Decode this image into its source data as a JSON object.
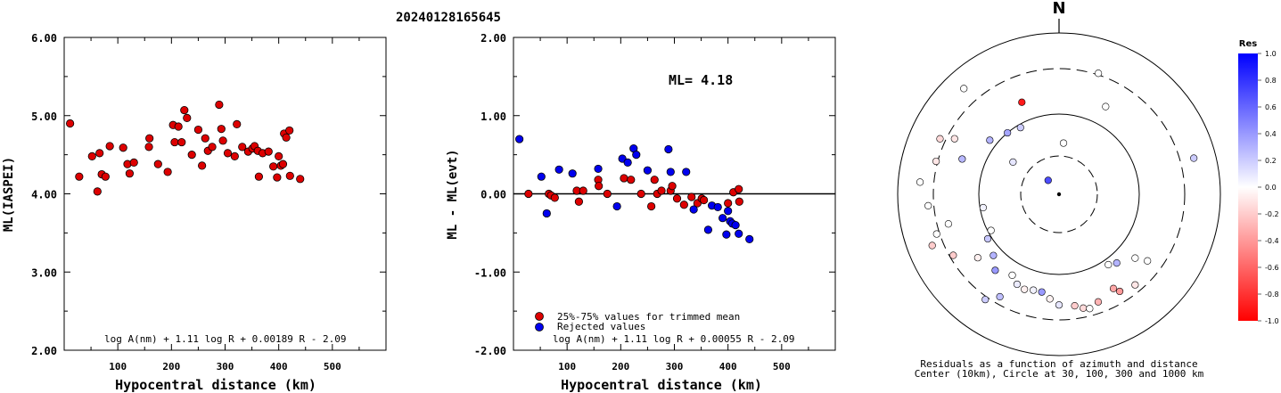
{
  "title": "20240128165645",
  "colors": {
    "red": "#dd0000",
    "blue": "#0000ee",
    "stroke": "#000000"
  },
  "chart_data": [
    {
      "type": "scatter",
      "xlabel": "Hypocentral distance (km)",
      "ylabel": "ML(IASPEI)",
      "xlim": [
        0,
        600
      ],
      "ylim": [
        2.0,
        6.0
      ],
      "xticks": [
        "100",
        "200",
        "300",
        "400",
        "500"
      ],
      "yticks": [
        "2.00",
        "3.00",
        "4.00",
        "5.00",
        "6.00"
      ],
      "formula": "log A(nm) + 1.11 log R + 0.00189 R - 2.09",
      "series": [
        {
          "color": "red",
          "points": [
            [
              11,
              4.9
            ],
            [
              28,
              4.22
            ],
            [
              52,
              4.48
            ],
            [
              62,
              4.03
            ],
            [
              66,
              4.52
            ],
            [
              70,
              4.25
            ],
            [
              77,
              4.22
            ],
            [
              85,
              4.61
            ],
            [
              110,
              4.59
            ],
            [
              118,
              4.38
            ],
            [
              122,
              4.26
            ],
            [
              130,
              4.4
            ],
            [
              158,
              4.6
            ],
            [
              159,
              4.71
            ],
            [
              175,
              4.38
            ],
            [
              193,
              4.28
            ],
            [
              203,
              4.88
            ],
            [
              206,
              4.66
            ],
            [
              213,
              4.86
            ],
            [
              219,
              4.66
            ],
            [
              224,
              5.07
            ],
            [
              229,
              4.97
            ],
            [
              238,
              4.5
            ],
            [
              250,
              4.82
            ],
            [
              257,
              4.36
            ],
            [
              263,
              4.71
            ],
            [
              268,
              4.55
            ],
            [
              276,
              4.6
            ],
            [
              289,
              5.14
            ],
            [
              293,
              4.83
            ],
            [
              296,
              4.68
            ],
            [
              305,
              4.52
            ],
            [
              318,
              4.48
            ],
            [
              322,
              4.89
            ],
            [
              332,
              4.6
            ],
            [
              343,
              4.54
            ],
            [
              351,
              4.58
            ],
            [
              355,
              4.61
            ],
            [
              361,
              4.55
            ],
            [
              363,
              4.22
            ],
            [
              370,
              4.52
            ],
            [
              381,
              4.54
            ],
            [
              390,
              4.35
            ],
            [
              397,
              4.21
            ],
            [
              400,
              4.48
            ],
            [
              404,
              4.36
            ],
            [
              408,
              4.38
            ],
            [
              410,
              4.77
            ],
            [
              414,
              4.72
            ],
            [
              420,
              4.81
            ],
            [
              421,
              4.23
            ],
            [
              440,
              4.19
            ]
          ]
        }
      ]
    },
    {
      "type": "scatter",
      "xlabel": "Hypocentral distance (km)",
      "ylabel": "ML - ML(evt)",
      "xlim": [
        0,
        600
      ],
      "ylim": [
        -2.0,
        2.0
      ],
      "xticks": [
        "100",
        "200",
        "300",
        "400",
        "500"
      ],
      "yticks": [
        "-2.00",
        "-1.00",
        "0.00",
        "1.00",
        "2.00"
      ],
      "annotation": "ML= 4.18",
      "legend": [
        {
          "label": "25%-75% values for trimmed mean",
          "color": "red"
        },
        {
          "label": "Rejected values",
          "color": "blue"
        }
      ],
      "formula": "log A(nm) + 1.11 log R + 0.00055 R - 2.09",
      "series": [
        {
          "name": "25%-75% values for trimmed mean",
          "color": "red",
          "points": [
            [
              28,
              0.0
            ],
            [
              66,
              0.0
            ],
            [
              70,
              -0.02
            ],
            [
              77,
              -0.05
            ],
            [
              118,
              0.04
            ],
            [
              122,
              -0.1
            ],
            [
              130,
              0.04
            ],
            [
              158,
              0.18
            ],
            [
              159,
              0.1
            ],
            [
              175,
              0.0
            ],
            [
              206,
              0.2
            ],
            [
              219,
              0.18
            ],
            [
              238,
              0.0
            ],
            [
              257,
              -0.16
            ],
            [
              263,
              0.18
            ],
            [
              268,
              0.0
            ],
            [
              276,
              0.04
            ],
            [
              293,
              0.04
            ],
            [
              296,
              0.1
            ],
            [
              305,
              -0.06
            ],
            [
              318,
              -0.14
            ],
            [
              332,
              -0.04
            ],
            [
              343,
              -0.12
            ],
            [
              351,
              -0.06
            ],
            [
              355,
              -0.08
            ],
            [
              400,
              -0.12
            ],
            [
              410,
              0.02
            ],
            [
              420,
              0.06
            ],
            [
              421,
              -0.1
            ]
          ]
        },
        {
          "name": "Rejected values",
          "color": "blue",
          "points": [
            [
              11,
              0.7
            ],
            [
              52,
              0.22
            ],
            [
              62,
              -0.25
            ],
            [
              85,
              0.31
            ],
            [
              110,
              0.26
            ],
            [
              158,
              0.32
            ],
            [
              193,
              -0.16
            ],
            [
              203,
              0.45
            ],
            [
              213,
              0.4
            ],
            [
              224,
              0.58
            ],
            [
              229,
              0.5
            ],
            [
              250,
              0.3
            ],
            [
              289,
              0.57
            ],
            [
              293,
              0.28
            ],
            [
              322,
              0.28
            ],
            [
              336,
              -0.2
            ],
            [
              363,
              -0.46
            ],
            [
              370,
              -0.15
            ],
            [
              381,
              -0.17
            ],
            [
              390,
              -0.31
            ],
            [
              397,
              -0.52
            ],
            [
              400,
              -0.22
            ],
            [
              404,
              -0.35
            ],
            [
              408,
              -0.38
            ],
            [
              414,
              -0.4
            ],
            [
              420,
              -0.51
            ],
            [
              440,
              -0.58
            ]
          ]
        }
      ]
    },
    {
      "type": "polar-scatter",
      "north_label": "N",
      "caption": [
        "Residuals as a function of azimuth and distance",
        "Center (10km), Circle at 30, 100, 300 and 1000 km"
      ],
      "colorbar": {
        "title": "Res",
        "range": [
          -1.0,
          1.0
        ],
        "ticks": [
          "1.0",
          "0.8",
          "0.6",
          "0.4",
          "0.2",
          "0.0",
          "-0.2",
          "-0.4",
          "-0.6",
          "-0.8",
          "-1.0"
        ]
      },
      "stations": [
        {
          "az": -38,
          "dist": 11,
          "res": 0.7
        },
        {
          "az": 5,
          "dist": 32,
          "res": 0.0
        },
        {
          "az": -55,
          "dist": 35,
          "res": 0.1
        },
        {
          "az": -30,
          "dist": 48,
          "res": 0.2
        },
        {
          "az": -40,
          "dist": 50,
          "res": 0.35
        },
        {
          "az": -52,
          "dist": 54,
          "res": 0.3
        },
        {
          "az": -70,
          "dist": 62,
          "res": 0.28
        },
        {
          "az": -62,
          "dist": 70,
          "res": -0.1
        },
        {
          "az": -100,
          "dist": 48,
          "res": 0.05
        },
        {
          "az": -118,
          "dist": 48,
          "res": 0.0
        },
        {
          "az": -122,
          "dist": 52,
          "res": 0.22
        },
        {
          "az": -133,
          "dist": 55,
          "res": 0.3
        },
        {
          "az": -140,
          "dist": 60,
          "res": 0.4
        },
        {
          "az": -150,
          "dist": 57,
          "res": 0.0
        },
        {
          "az": -155,
          "dist": 60,
          "res": 0.08
        },
        {
          "az": -160,
          "dist": 61,
          "res": -0.06
        },
        {
          "az": -165,
          "dist": 60,
          "res": 0.05
        },
        {
          "az": -170,
          "dist": 60,
          "res": 0.4
        },
        {
          "az": -175,
          "dist": 63,
          "res": -0.05
        },
        {
          "az": 180,
          "dist": 66,
          "res": 0.1
        },
        {
          "az": 172,
          "dist": 67,
          "res": -0.2
        },
        {
          "az": 168,
          "dist": 69,
          "res": -0.15
        },
        {
          "az": 165,
          "dist": 70,
          "res": 0.0
        },
        {
          "az": 160,
          "dist": 68,
          "res": -0.3
        },
        {
          "az": 150,
          "dist": 65,
          "res": -0.35
        },
        {
          "az": 148,
          "dist": 68,
          "res": -0.4
        },
        {
          "az": 140,
          "dist": 55,
          "res": 0.3
        },
        {
          "az": 130,
          "dist": 60,
          "res": 0.0
        },
        {
          "az": 127,
          "dist": 66,
          "res": 0.0
        },
        {
          "az": 140,
          "dist": 70,
          "res": -0.1
        },
        {
          "az": 145,
          "dist": 53,
          "res": 0.0
        },
        {
          "az": -128,
          "dist": 62,
          "res": -0.06
        },
        {
          "az": -120,
          "dist": 72,
          "res": -0.2
        },
        {
          "az": -108,
          "dist": 76,
          "res": 0.0
        },
        {
          "az": -112,
          "dist": 82,
          "res": -0.2
        },
        {
          "az": -105,
          "dist": 68,
          "res": 0.0
        },
        {
          "az": -95,
          "dist": 78,
          "res": 0.0
        },
        {
          "az": -85,
          "dist": 84,
          "res": 0.0
        },
        {
          "az": -75,
          "dist": 75,
          "res": -0.1
        },
        {
          "az": -65,
          "dist": 78,
          "res": -0.15
        },
        {
          "az": -42,
          "dist": 86,
          "res": 0.0
        },
        {
          "az": -22,
          "dist": 60,
          "res": -0.9
        },
        {
          "az": 18,
          "dist": 75,
          "res": 0.0
        },
        {
          "az": 28,
          "dist": 60,
          "res": 0.0
        },
        {
          "az": 75,
          "dist": 84,
          "res": 0.2
        },
        {
          "az": -150,
          "dist": 70,
          "res": 0.25
        },
        {
          "az": -145,
          "dist": 76,
          "res": 0.2
        }
      ]
    }
  ]
}
